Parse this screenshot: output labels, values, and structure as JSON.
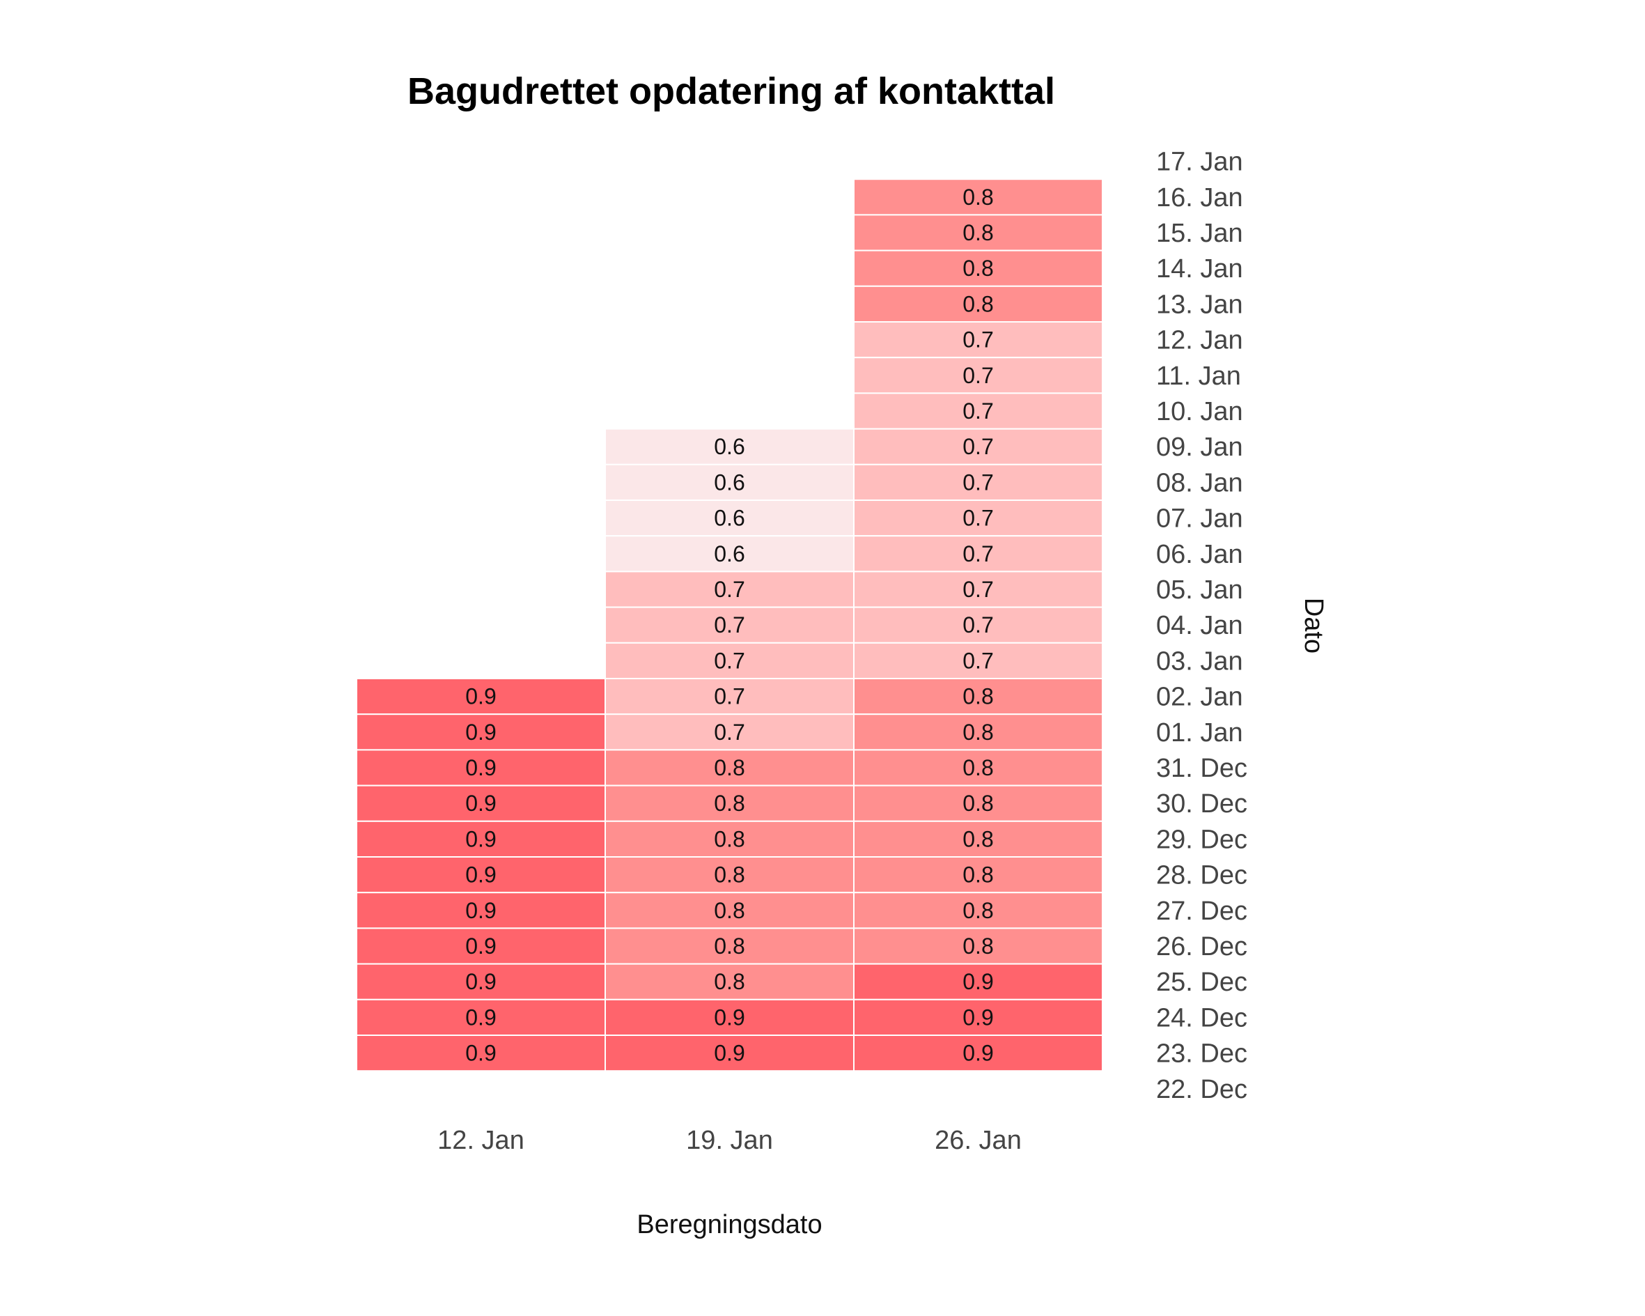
{
  "chart_data": {
    "type": "heatmap",
    "title": "Bagudrettet opdatering af kontakttal",
    "xlabel": "Beregningsdato",
    "ylabel": "Dato",
    "x_categories": [
      "12. Jan",
      "19. Jan",
      "26. Jan"
    ],
    "y_categories": [
      "17. Jan",
      "16. Jan",
      "15. Jan",
      "14. Jan",
      "13. Jan",
      "12. Jan",
      "11. Jan",
      "10. Jan",
      "09. Jan",
      "08. Jan",
      "07. Jan",
      "06. Jan",
      "05. Jan",
      "04. Jan",
      "03. Jan",
      "02. Jan",
      "01. Jan",
      "31. Dec",
      "30. Dec",
      "29. Dec",
      "28. Dec",
      "27. Dec",
      "26. Dec",
      "25. Dec",
      "24. Dec",
      "23. Dec",
      "22. Dec"
    ],
    "series": [
      {
        "x": "12. Jan",
        "values": [
          null,
          null,
          null,
          null,
          null,
          null,
          null,
          null,
          null,
          null,
          null,
          null,
          null,
          null,
          null,
          0.9,
          0.9,
          0.9,
          0.9,
          0.9,
          0.9,
          0.9,
          0.9,
          0.9,
          0.9,
          0.9,
          null
        ]
      },
      {
        "x": "19. Jan",
        "values": [
          null,
          null,
          null,
          null,
          null,
          null,
          null,
          null,
          0.6,
          0.6,
          0.6,
          0.6,
          0.7,
          0.7,
          0.7,
          0.7,
          0.7,
          0.8,
          0.8,
          0.8,
          0.8,
          0.8,
          0.8,
          0.8,
          0.9,
          0.9,
          null
        ]
      },
      {
        "x": "26. Jan",
        "values": [
          null,
          0.8,
          0.8,
          0.8,
          0.8,
          0.7,
          0.7,
          0.7,
          0.7,
          0.7,
          0.7,
          0.7,
          0.7,
          0.7,
          0.7,
          0.8,
          0.8,
          0.8,
          0.8,
          0.8,
          0.8,
          0.8,
          0.8,
          0.9,
          0.9,
          0.9,
          null
        ]
      }
    ],
    "color_scale": {
      "0.6": "#fbe7e8",
      "0.7": "#ffbdbd",
      "0.8": "#ff8f8f",
      "0.9": "#ff646c"
    },
    "y_axis_position": "right",
    "grid": false,
    "legend": false
  }
}
